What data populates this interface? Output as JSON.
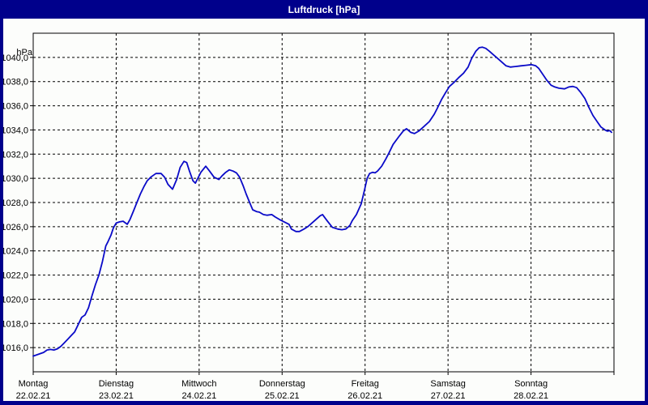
{
  "window": {
    "title": "Luftdruck [hPa]"
  },
  "colors": {
    "frame": "#00008b",
    "plot_background": "#fcfdfb",
    "line": "#0a0ac8",
    "grid": "#000000",
    "text": "#000000",
    "title_text": "#ffffff"
  },
  "y_axis": {
    "unit": "hPa",
    "tick_labels": [
      "1040,0",
      "1038,0",
      "1036,0",
      "1034,0",
      "1032,0",
      "1030,0",
      "1028,0",
      "1026,0",
      "1024,0",
      "1022,0",
      "1020,0",
      "1018,0",
      "1016,0"
    ],
    "tick_values": [
      1040,
      1038,
      1036,
      1034,
      1032,
      1030,
      1028,
      1026,
      1024,
      1022,
      1020,
      1018,
      1016
    ]
  },
  "x_axis": {
    "days": [
      {
        "name": "Montag",
        "date": "22.02.21"
      },
      {
        "name": "Dienstag",
        "date": "23.02.21"
      },
      {
        "name": "Mittwoch",
        "date": "24.02.21"
      },
      {
        "name": "Donnerstag",
        "date": "25.02.21"
      },
      {
        "name": "Freitag",
        "date": "26.02.21"
      },
      {
        "name": "Samstag",
        "date": "27.02.21"
      },
      {
        "name": "Sonntag",
        "date": "28.02.21"
      }
    ]
  },
  "chart_data": {
    "type": "line",
    "title": "Luftdruck [hPa]",
    "ylabel": "hPa",
    "ylim": [
      1014,
      1042
    ],
    "xlim_hours": [
      0,
      168
    ],
    "grid": "dashed",
    "legend": "none",
    "x_unit": "hours since Montag 22.02.21 00:00",
    "series": [
      {
        "name": "Luftdruck",
        "points": [
          [
            0,
            1015.3
          ],
          [
            1,
            1015.4
          ],
          [
            2,
            1015.5
          ],
          [
            3,
            1015.6
          ],
          [
            4,
            1015.8
          ],
          [
            5,
            1015.85
          ],
          [
            6,
            1015.8
          ],
          [
            7,
            1015.9
          ],
          [
            8,
            1016.1
          ],
          [
            9,
            1016.4
          ],
          [
            10,
            1016.7
          ],
          [
            11,
            1017.0
          ],
          [
            12,
            1017.3
          ],
          [
            13,
            1017.9
          ],
          [
            14,
            1018.5
          ],
          [
            15,
            1018.7
          ],
          [
            16,
            1019.3
          ],
          [
            17,
            1020.3
          ],
          [
            18,
            1021.2
          ],
          [
            19,
            1022.0
          ],
          [
            20,
            1023.1
          ],
          [
            21,
            1024.4
          ],
          [
            21.7,
            1024.8
          ],
          [
            22.5,
            1025.3
          ],
          [
            23.2,
            1025.9
          ],
          [
            24,
            1026.3
          ],
          [
            25,
            1026.4
          ],
          [
            26,
            1026.45
          ],
          [
            27.2,
            1026.2
          ],
          [
            28,
            1026.6
          ],
          [
            29,
            1027.3
          ],
          [
            30,
            1028.0
          ],
          [
            31,
            1028.7
          ],
          [
            32,
            1029.3
          ],
          [
            33,
            1029.8
          ],
          [
            34,
            1030.1
          ],
          [
            35.5,
            1030.4
          ],
          [
            37,
            1030.4
          ],
          [
            38,
            1030.1
          ],
          [
            39,
            1029.5
          ],
          [
            40.3,
            1029.1
          ],
          [
            41.5,
            1029.9
          ],
          [
            42.5,
            1030.9
          ],
          [
            43.6,
            1031.4
          ],
          [
            44.4,
            1031.3
          ],
          [
            45.2,
            1030.6
          ],
          [
            46.2,
            1029.8
          ],
          [
            46.9,
            1029.6
          ],
          [
            47.6,
            1030.0
          ],
          [
            48.5,
            1030.5
          ],
          [
            49.9,
            1031.0
          ],
          [
            51,
            1030.6
          ],
          [
            52.3,
            1030.1
          ],
          [
            53.7,
            1029.9
          ],
          [
            54.6,
            1030.2
          ],
          [
            55.7,
            1030.5
          ],
          [
            56.7,
            1030.7
          ],
          [
            57.8,
            1030.6
          ],
          [
            58.8,
            1030.45
          ],
          [
            59.7,
            1030.1
          ],
          [
            60.7,
            1029.4
          ],
          [
            61.6,
            1028.7
          ],
          [
            62.6,
            1028.0
          ],
          [
            63.5,
            1027.4
          ],
          [
            64.6,
            1027.25
          ],
          [
            65.4,
            1027.2
          ],
          [
            66.6,
            1027.0
          ],
          [
            67.7,
            1026.95
          ],
          [
            69,
            1027.0
          ],
          [
            70,
            1026.8
          ],
          [
            71.2,
            1026.6
          ],
          [
            72.6,
            1026.4
          ],
          [
            74,
            1026.2
          ],
          [
            74.7,
            1025.8
          ],
          [
            76,
            1025.6
          ],
          [
            77,
            1025.6
          ],
          [
            78.3,
            1025.8
          ],
          [
            79.4,
            1026.0
          ],
          [
            80.6,
            1026.3
          ],
          [
            81.8,
            1026.6
          ],
          [
            83,
            1026.9
          ],
          [
            83.7,
            1027.0
          ],
          [
            85,
            1026.5
          ],
          [
            86.5,
            1025.95
          ],
          [
            88.1,
            1025.8
          ],
          [
            89.3,
            1025.75
          ],
          [
            90.4,
            1025.8
          ],
          [
            91.6,
            1026.1
          ],
          [
            92.3,
            1026.5
          ],
          [
            93.5,
            1027.0
          ],
          [
            94.9,
            1027.9
          ],
          [
            95.8,
            1029.0
          ],
          [
            96.6,
            1030.0
          ],
          [
            97.3,
            1030.4
          ],
          [
            98.2,
            1030.5
          ],
          [
            98.9,
            1030.45
          ],
          [
            99.6,
            1030.6
          ],
          [
            100.8,
            1031.0
          ],
          [
            102,
            1031.6
          ],
          [
            102.9,
            1032.1
          ],
          [
            104.1,
            1032.8
          ],
          [
            105.9,
            1033.5
          ],
          [
            107,
            1033.9
          ],
          [
            108,
            1034.1
          ],
          [
            109.2,
            1033.8
          ],
          [
            110.3,
            1033.7
          ],
          [
            111.5,
            1033.9
          ],
          [
            112.7,
            1034.2
          ],
          [
            114.6,
            1034.7
          ],
          [
            116,
            1035.3
          ],
          [
            116.9,
            1035.8
          ],
          [
            118.1,
            1036.5
          ],
          [
            119.3,
            1037.1
          ],
          [
            120.4,
            1037.6
          ],
          [
            121.6,
            1037.9
          ],
          [
            123,
            1038.3
          ],
          [
            124.5,
            1038.7
          ],
          [
            125.8,
            1039.2
          ],
          [
            126.8,
            1039.9
          ],
          [
            128,
            1040.5
          ],
          [
            129,
            1040.8
          ],
          [
            129.9,
            1040.85
          ],
          [
            130.9,
            1040.75
          ],
          [
            132,
            1040.5
          ],
          [
            133.2,
            1040.2
          ],
          [
            134.4,
            1039.9
          ],
          [
            135.6,
            1039.6
          ],
          [
            136.8,
            1039.3
          ],
          [
            138,
            1039.2
          ],
          [
            139.5,
            1039.25
          ],
          [
            141,
            1039.3
          ],
          [
            142.5,
            1039.35
          ],
          [
            144.1,
            1039.4
          ],
          [
            145.4,
            1039.3
          ],
          [
            146.2,
            1039.1
          ],
          [
            147.4,
            1038.6
          ],
          [
            148.6,
            1038.1
          ],
          [
            149.8,
            1037.7
          ],
          [
            150.9,
            1037.55
          ],
          [
            152.1,
            1037.45
          ],
          [
            153.7,
            1037.4
          ],
          [
            154.9,
            1037.55
          ],
          [
            156.1,
            1037.6
          ],
          [
            157.2,
            1037.5
          ],
          [
            158.4,
            1037.1
          ],
          [
            159.6,
            1036.6
          ],
          [
            160.7,
            1035.9
          ],
          [
            161.9,
            1035.2
          ],
          [
            163.1,
            1034.7
          ],
          [
            164.2,
            1034.25
          ],
          [
            165.4,
            1034.0
          ],
          [
            166.1,
            1033.9
          ],
          [
            166.8,
            1033.95
          ],
          [
            167.3,
            1033.8
          ]
        ]
      }
    ]
  }
}
